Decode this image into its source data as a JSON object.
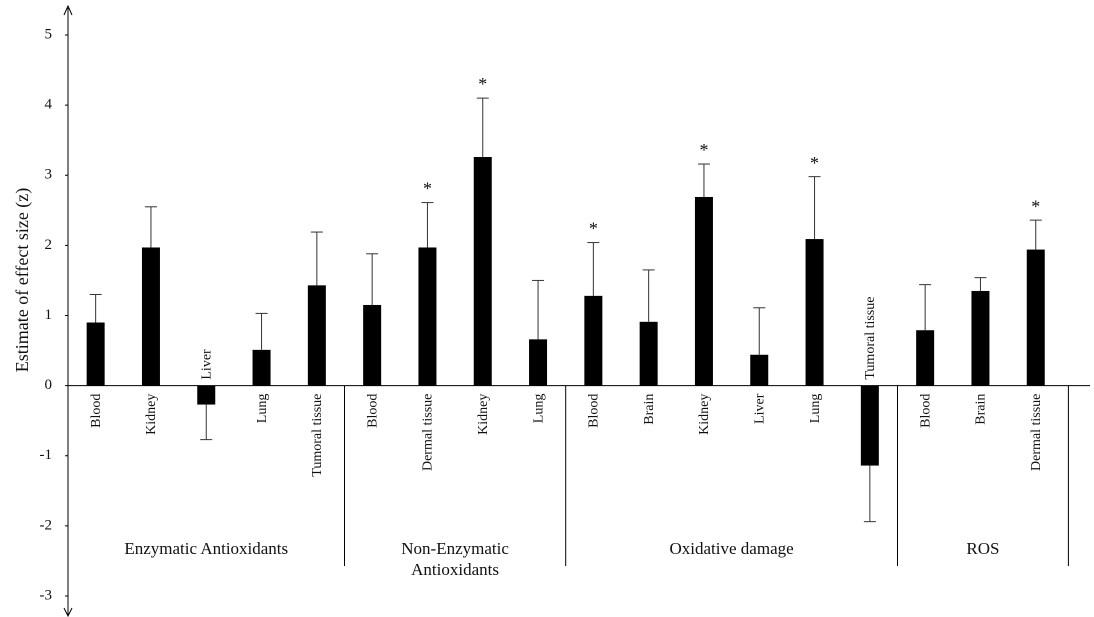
{
  "chart_data": {
    "type": "bar",
    "y_label": "Estimate of effect size (z)",
    "color": "#000000",
    "ylim": [
      -3,
      5
    ],
    "yticks": [
      -3,
      -2,
      -1,
      0,
      1,
      2,
      3,
      4,
      5
    ],
    "groups": [
      {
        "name": "Enzymatic Antioxidants",
        "categories": [
          "Blood",
          "Kidney",
          "Liver",
          "Lung",
          "Tumoral tissue"
        ],
        "values": [
          0.9,
          1.97,
          -0.27,
          0.51,
          1.43
        ],
        "errors": [
          0.4,
          0.58,
          0.5,
          0.52,
          0.76
        ],
        "significance": [
          null,
          null,
          null,
          null,
          null
        ]
      },
      {
        "name": "Non-Enzymatic Antioxidants",
        "categories": [
          "Blood",
          "Dermal tissue",
          "Kidney",
          "Lung"
        ],
        "values": [
          1.15,
          1.97,
          3.26,
          0.66
        ],
        "errors": [
          0.73,
          0.64,
          0.84,
          0.84
        ],
        "significance": [
          null,
          "*",
          "*",
          null
        ]
      },
      {
        "name": "Oxidative damage",
        "categories": [
          "Blood",
          "Brain",
          "Kidney",
          "Liver",
          "Lung",
          "Tumoral tissue"
        ],
        "values": [
          1.28,
          0.91,
          2.69,
          0.44,
          2.09,
          -1.14
        ],
        "errors": [
          0.76,
          0.74,
          0.47,
          0.67,
          0.89,
          0.8
        ],
        "significance": [
          "*",
          null,
          "*",
          null,
          "*",
          null
        ]
      },
      {
        "name": "ROS",
        "categories": [
          "Blood",
          "Brain",
          "Dermal tissue"
        ],
        "values": [
          0.79,
          1.35,
          1.94
        ],
        "errors": [
          0.65,
          0.19,
          0.42
        ],
        "significance": [
          null,
          null,
          "*"
        ]
      }
    ]
  }
}
